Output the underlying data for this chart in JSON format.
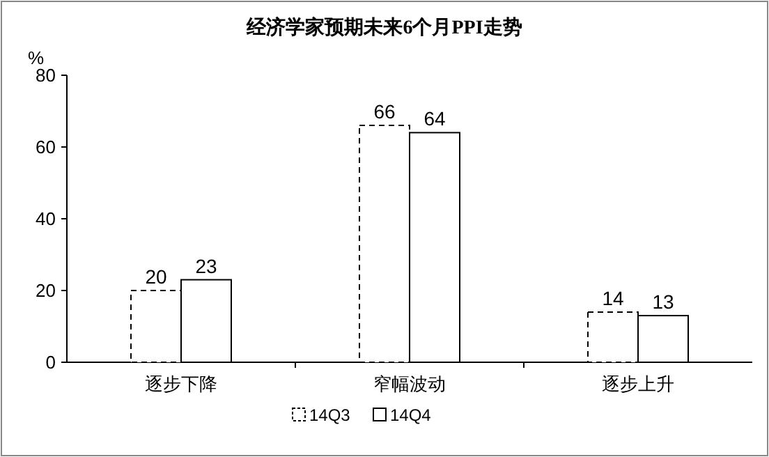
{
  "chart_data": {
    "type": "bar",
    "title": "经济学家预期未来6个月PPI走势",
    "ylabel": "%",
    "categories": [
      "逐步下降",
      "窄幅波动",
      "逐步上升"
    ],
    "series": [
      {
        "name": "14Q3",
        "color": "#000000",
        "line_style": "dashed",
        "values": [
          20,
          66,
          14
        ]
      },
      {
        "name": "14Q4",
        "color": "#000000",
        "line_style": "solid",
        "values": [
          23,
          64,
          13
        ]
      }
    ],
    "ylim": [
      0,
      80
    ],
    "yticks": [
      0,
      20,
      40,
      60,
      80
    ],
    "data_labels": true,
    "legend": "bottom"
  }
}
